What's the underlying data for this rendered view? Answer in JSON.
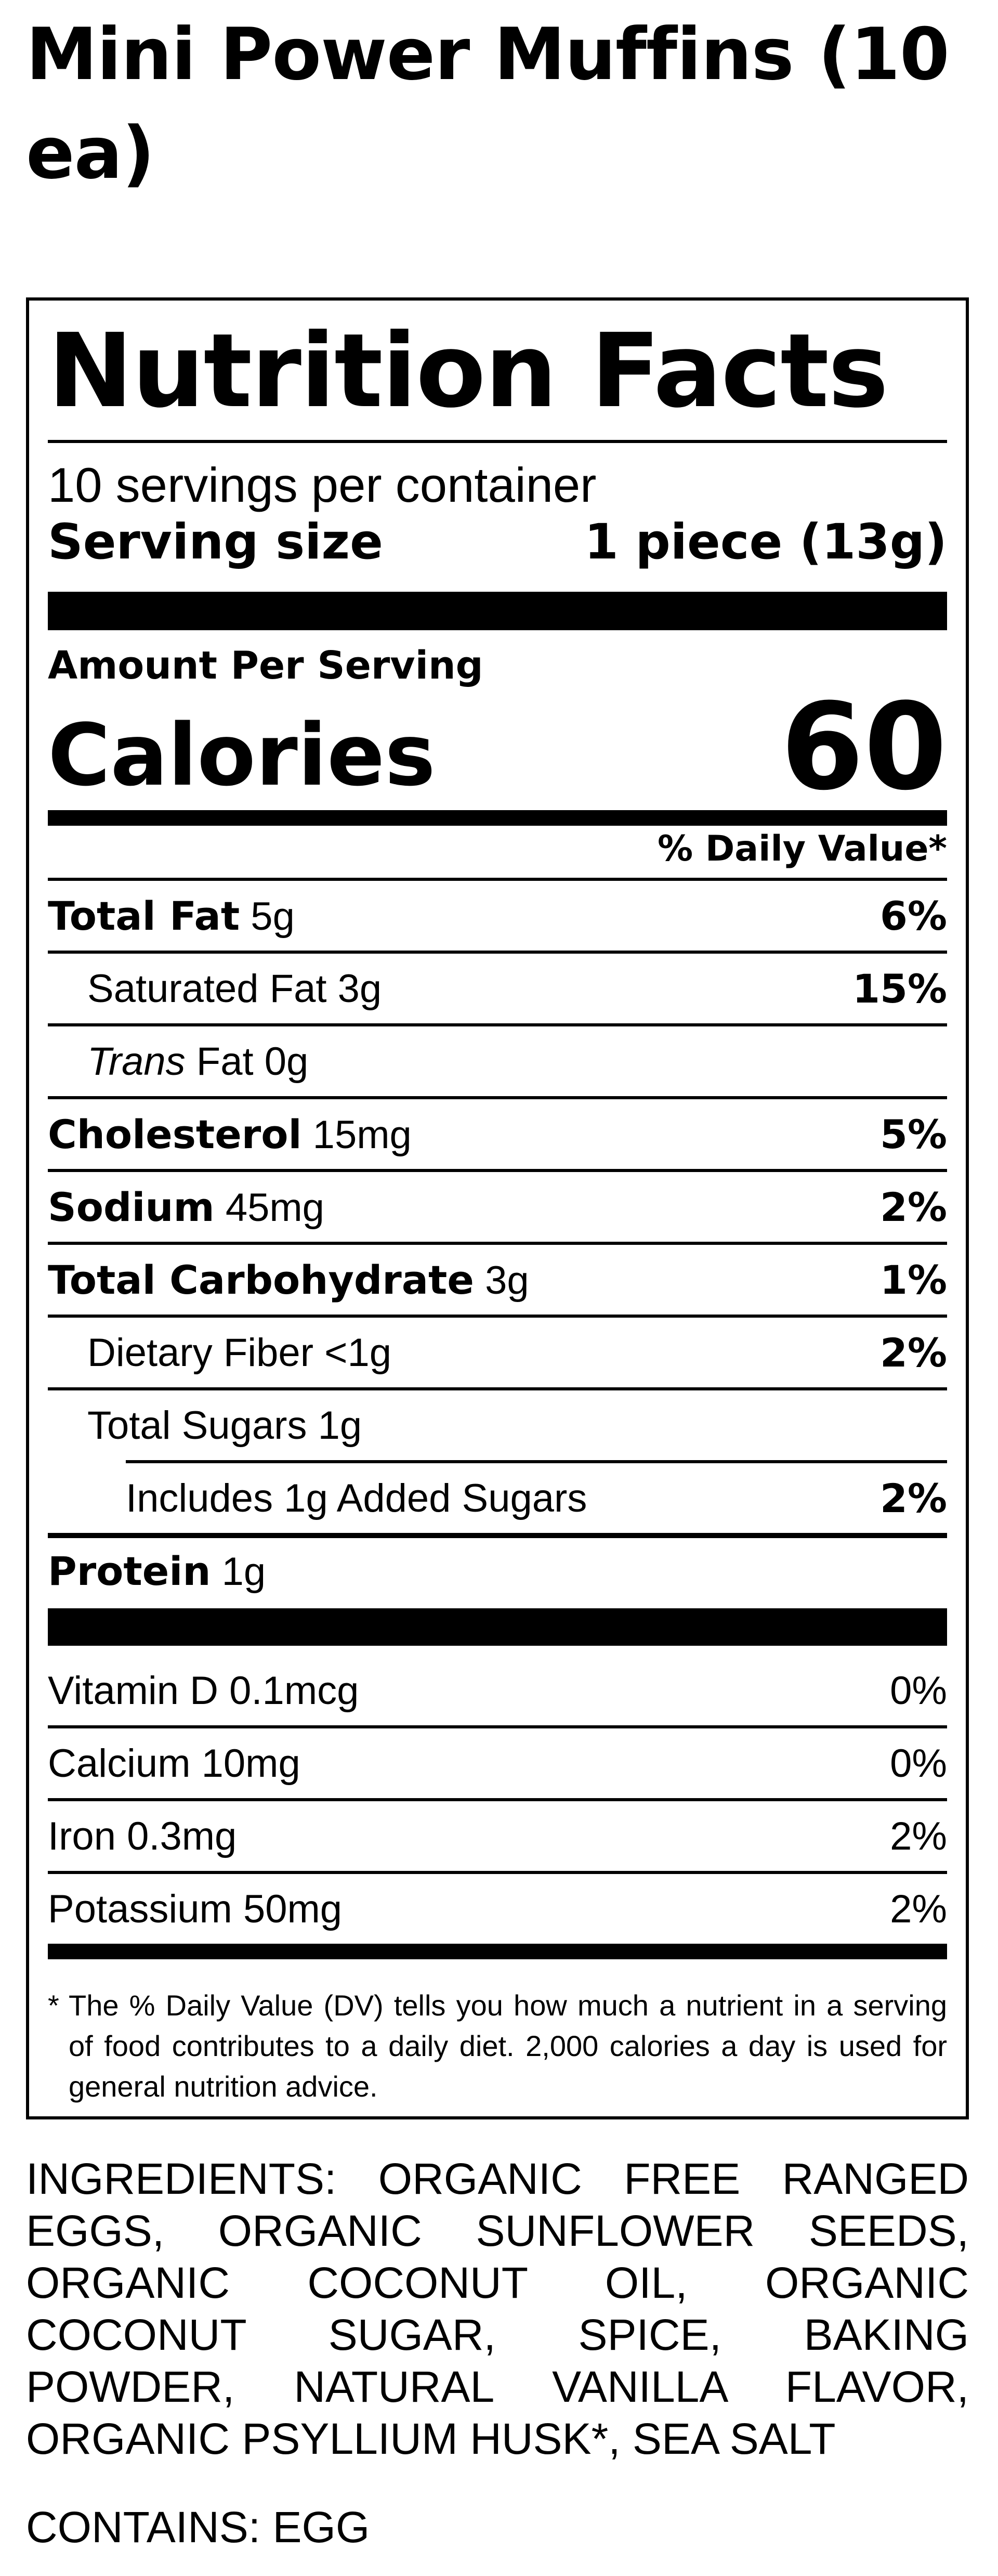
{
  "product": {
    "title": "Mini Power Muffins (10 ea)"
  },
  "label": {
    "heading": "Nutrition Facts",
    "servings_per_container": "10 servings per container",
    "serving_size_label": "Serving size",
    "serving_size_value": "1 piece (13g)",
    "amount_per_serving": "Amount Per Serving",
    "calories_label": "Calories",
    "calories_value": "60",
    "daily_value_header": "% Daily Value*",
    "nutrients": [
      {
        "name": "Total Fat",
        "amount": "5g",
        "dv": "6%"
      },
      {
        "name": "Saturated Fat",
        "amount": "3g",
        "dv": "15%"
      },
      {
        "name_italic": "Trans",
        "name": "Fat",
        "amount": "0g",
        "dv": ""
      },
      {
        "name": "Cholesterol",
        "amount": "15mg",
        "dv": "5%"
      },
      {
        "name": "Sodium",
        "amount": "45mg",
        "dv": "2%"
      },
      {
        "name": "Total Carbohydrate",
        "amount": "3g",
        "dv": "1%"
      },
      {
        "name": "Dietary Fiber",
        "amount": "<1g",
        "dv": "2%"
      },
      {
        "name": "Total Sugars",
        "amount": "1g",
        "dv": ""
      },
      {
        "name": "Includes 1g Added Sugars",
        "amount": "",
        "dv": "2%"
      },
      {
        "name": "Protein",
        "amount": "1g",
        "dv": ""
      }
    ],
    "vitamins": [
      {
        "name": "Vitamin D",
        "amount": "0.1mcg",
        "dv": "0%"
      },
      {
        "name": "Calcium",
        "amount": "10mg",
        "dv": "0%"
      },
      {
        "name": "Iron",
        "amount": "0.3mg",
        "dv": "2%"
      },
      {
        "name": "Potassium",
        "amount": "50mg",
        "dv": "2%"
      }
    ],
    "footnote_star": "*",
    "footnote": "The % Daily Value (DV) tells you how much a nutrient in a serving of food contributes to a daily diet. 2,000 calories a day is used for general nutrition advice."
  },
  "ingredients": "INGREDIENTS: ORGANIC FREE RANGED EGGS, ORGANIC SUNFLOWER SEEDS, ORGANIC COCONUT OIL, ORGANIC COCONUT SUGAR, SPICE, BAKING POWDER, NATURAL VANILLA FLAVOR, ORGANIC PSYLLIUM HUSK*, SEA SALT",
  "contains": "CONTAINS: EGG"
}
